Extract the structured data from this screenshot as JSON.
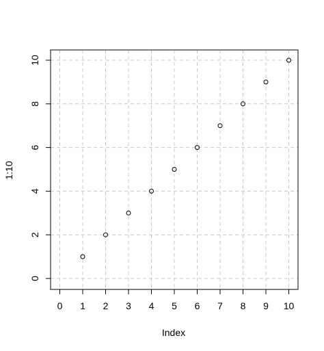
{
  "chart_data": {
    "type": "scatter",
    "title": "",
    "xlabel": "Index",
    "ylabel": "1:10",
    "xlim": [
      0,
      10
    ],
    "ylim": [
      0,
      10
    ],
    "x_ticks": [
      0,
      1,
      2,
      3,
      4,
      5,
      6,
      7,
      8,
      9,
      10
    ],
    "y_ticks": [
      0,
      2,
      4,
      6,
      8,
      10
    ],
    "grid": true,
    "grid_style": "dashed",
    "marker": "open-circle",
    "series": [
      {
        "x": [
          1,
          2,
          3,
          4,
          5,
          6,
          7,
          8,
          9,
          10
        ],
        "y": [
          1,
          2,
          3,
          4,
          5,
          6,
          7,
          8,
          9,
          10
        ]
      }
    ],
    "colors": {
      "points": "#000000",
      "grid": "#c8c8c8",
      "frame": "#000000"
    }
  }
}
